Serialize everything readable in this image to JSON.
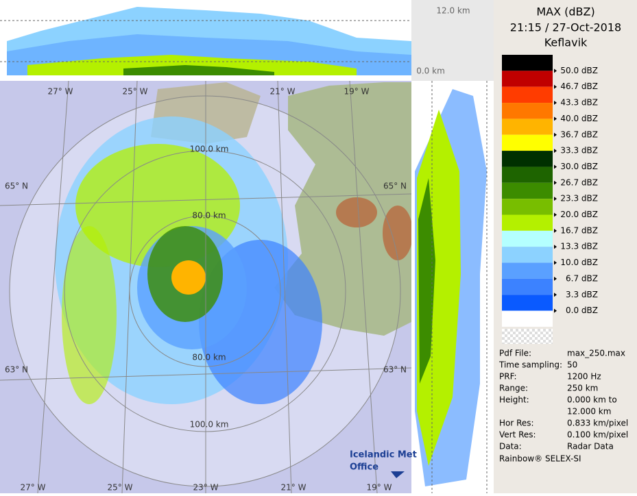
{
  "header": {
    "product": "MAX (dBZ)",
    "datetime": "21:15 / 27-Oct-2018",
    "site": "Keflavik"
  },
  "legend": {
    "colors": [
      "#000000",
      "#c00000",
      "#ff3c00",
      "#ff7800",
      "#ffb400",
      "#ffff00",
      "#003000",
      "#1e6400",
      "#3c8c00",
      "#78be00",
      "#b4f000",
      "#b4ffff",
      "#8cd2ff",
      "#5aa0ff",
      "#3c82ff",
      "#0a5aff",
      "#ffffff"
    ],
    "labels": [
      "50.0 dBZ",
      "46.7 dBZ",
      "43.3 dBZ",
      "40.0 dBZ",
      "36.7 dBZ",
      "33.3 dBZ",
      "30.0 dBZ",
      "26.7 dBZ",
      "23.3 dBZ",
      "20.0 dBZ",
      "16.7 dBZ",
      "13.3 dBZ",
      "10.0 dBZ",
      "6.7 dBZ",
      "3.3 dBZ",
      "0.0 dBZ"
    ]
  },
  "info": {
    "rows": [
      {
        "label": "Pdf File:",
        "value": "max_250.max"
      },
      {
        "label": "Time sampling:",
        "value": "50"
      },
      {
        "label": "PRF:",
        "value": "1200 Hz"
      },
      {
        "label": "Range:",
        "value": "250 km"
      },
      {
        "label": "Height:",
        "value": "0.000 km to",
        "value_cont": "12.000 km"
      },
      {
        "label": "Hor Res:",
        "value": "0.833 km/pixel"
      },
      {
        "label": "Vert Res:",
        "value": "0.100 km/pixel"
      },
      {
        "label": "Data:",
        "value": "Radar Data"
      }
    ],
    "footer": "Rainbow® SELEX-SI"
  },
  "map": {
    "lon_top": [
      "27° W",
      "25° W",
      "21° W",
      "19° W"
    ],
    "lon_bottom": [
      "27° W",
      "25° W",
      "23° W",
      "21° W",
      "19° W"
    ],
    "lat_left": [
      "65° N",
      "63° N"
    ],
    "lat_right": [
      "65° N",
      "63° N"
    ],
    "ranges": [
      "100.0 km",
      "80.0 km",
      "80.0 km",
      "100.0 km"
    ]
  },
  "profile": {
    "top_label": "12.0 km",
    "bottom_label": "0.0 km"
  },
  "logo": {
    "line1": "Icelandic Met",
    "line2": "Office"
  }
}
